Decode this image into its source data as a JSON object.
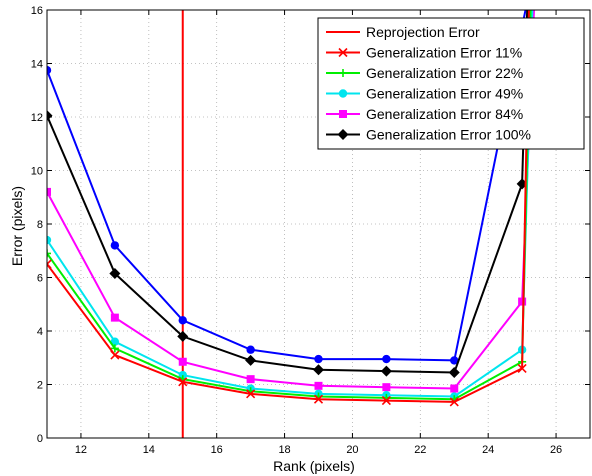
{
  "chart_data": {
    "type": "line",
    "xlabel": "Rank (pixels)",
    "ylabel": "Error (pixels)",
    "xlim": [
      11,
      27
    ],
    "ylim": [
      0,
      16
    ],
    "xticks": [
      12,
      14,
      16,
      18,
      20,
      22,
      24,
      26
    ],
    "yticks": [
      0,
      2,
      4,
      6,
      8,
      10,
      12,
      14,
      16
    ],
    "grid": true,
    "legend_position": "top-right",
    "vertical_line": {
      "name": "Reprojection Error",
      "x": 15,
      "color": "#ff0000"
    },
    "x": [
      11,
      13,
      15,
      17,
      19,
      21,
      23,
      25
    ],
    "series": [
      {
        "name": "Generalization Error 11%",
        "color": "#ff0000",
        "marker": "x",
        "values": [
          6.5,
          3.1,
          2.1,
          1.65,
          1.45,
          1.4,
          1.35,
          2.6
        ],
        "tail_x": [
          25.2
        ],
        "tail_y": [
          16
        ]
      },
      {
        "name": "Generalization Error 22%",
        "color": "#00ee00",
        "marker": "plus",
        "values": [
          6.9,
          3.35,
          2.2,
          1.75,
          1.55,
          1.5,
          1.45,
          2.85
        ],
        "tail_x": [
          25.25
        ],
        "tail_y": [
          16
        ]
      },
      {
        "name": "Generalization Error 49%",
        "color": "#00e5ee",
        "marker": "dot",
        "values": [
          7.4,
          3.6,
          2.35,
          1.85,
          1.65,
          1.6,
          1.55,
          3.3
        ],
        "tail_x": [
          25.3
        ],
        "tail_y": [
          16
        ]
      },
      {
        "name": "Generalization Error 84%",
        "color": "#ff00ff",
        "marker": "square",
        "values": [
          9.2,
          4.5,
          2.85,
          2.2,
          1.95,
          1.9,
          1.85,
          5.1
        ],
        "tail_x": [
          25.35
        ],
        "tail_y": [
          16
        ]
      },
      {
        "name": "Generalization Error 100%",
        "color": "#000000",
        "marker": "diamond",
        "values": [
          12.05,
          6.15,
          3.8,
          2.9,
          2.55,
          2.5,
          2.45,
          9.5
        ],
        "tail_x": [
          25.15
        ],
        "tail_y": [
          16
        ]
      },
      {
        "name": "",
        "color": "#0000ff",
        "marker": "dot",
        "values": [
          13.75,
          7.2,
          4.4,
          3.3,
          2.95,
          2.95,
          2.9,
          null
        ],
        "tail_x": [
          25.1
        ],
        "tail_y": [
          16
        ]
      }
    ]
  }
}
